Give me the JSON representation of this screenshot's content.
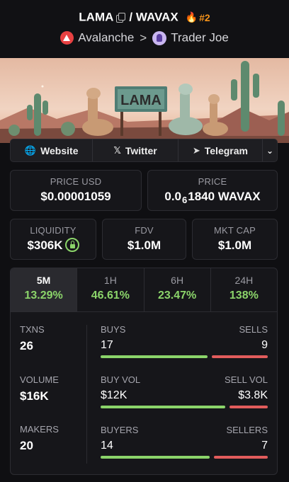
{
  "header": {
    "base": "LAMA",
    "separator": "/",
    "quote": "WAVAX",
    "rank": "#2",
    "chain": "Avalanche",
    "chain_sep": ">",
    "dex": "Trader Joe"
  },
  "banner": {
    "sign_text": "LAMA"
  },
  "links": {
    "website": "Website",
    "twitter": "Twitter",
    "telegram": "Telegram"
  },
  "price": {
    "usd_label": "PRICE USD",
    "usd_value": "$0.00001059",
    "native_label": "PRICE",
    "native_prefix": "0.0",
    "native_subscript": "6",
    "native_digits": "1840",
    "native_unit": "WAVAX"
  },
  "metrics": {
    "liquidity_label": "LIQUIDITY",
    "liquidity_value": "$306K",
    "fdv_label": "FDV",
    "fdv_value": "$1.0M",
    "mcap_label": "MKT CAP",
    "mcap_value": "$1.0M"
  },
  "tabs": [
    {
      "label": "5M",
      "value": "13.29%",
      "active": true
    },
    {
      "label": "1H",
      "value": "46.61%",
      "active": false
    },
    {
      "label": "6H",
      "value": "23.47%",
      "active": false
    },
    {
      "label": "24H",
      "value": "138%",
      "active": false
    }
  ],
  "stats": {
    "txns_label": "TXNS",
    "txns_value": "26",
    "volume_label": "VOLUME",
    "volume_value": "$16K",
    "makers_label": "MAKERS",
    "makers_value": "20",
    "buys_label": "BUYS",
    "buys_value": "17",
    "sells_label": "SELLS",
    "sells_value": "9",
    "buys_fraction": 0.654,
    "buyvol_label": "BUY VOL",
    "buyvol_value": "$12K",
    "sellvol_label": "SELL VOL",
    "sellvol_value": "$3.8K",
    "buyvol_fraction": 0.76,
    "buyers_label": "BUYERS",
    "buyers_value": "14",
    "sellers_label": "SELLERS",
    "sellers_value": "7",
    "buyers_fraction": 0.667
  },
  "colors": {
    "positive": "#8bd46a",
    "negative": "#e25c5c",
    "accent": "#f7931a"
  }
}
